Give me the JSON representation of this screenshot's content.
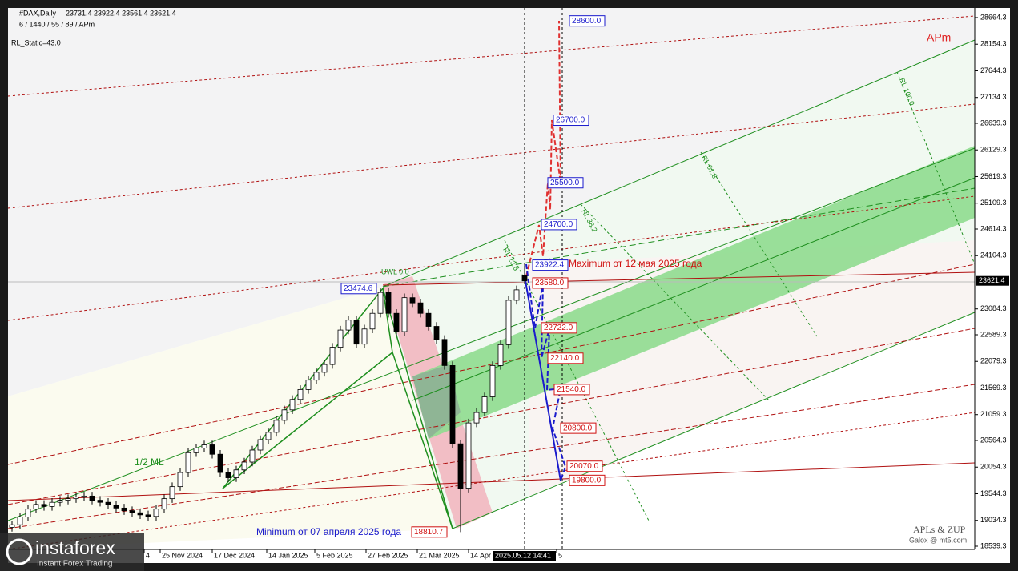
{
  "chart_data": {
    "type": "candlestick",
    "title": "#DAX,Daily",
    "ohlc_header": "23731.4 23922.4 23561.4 23621.4",
    "subtitle": "6 / 1440 / 55 / 89 / APm",
    "static_label": "RL_Static=43.0",
    "corner_label": "APm",
    "annotations": [
      "Maximum от 12 мая 2025 года",
      "Minimum от 07 апреля 2025 года",
      "1/2 ML",
      "UWL 0.0",
      "RL 23.6",
      "RL 38.2",
      "RL 61.8",
      "RL 100.0"
    ],
    "credits": [
      "APLs & ZUP",
      "Galox @ mt5.com"
    ],
    "watermark": [
      "instaforex",
      "Instant Forex Trading"
    ],
    "current_price": 23621.4,
    "cursor_time": "2025.05.12 14:41",
    "open": [
      18900,
      18950,
      19100,
      19250,
      19340,
      19300,
      19380,
      19420,
      19450,
      19480,
      19500,
      19420,
      19380,
      19330,
      19270,
      19220,
      19180,
      19140,
      19110,
      19250,
      19450,
      19680,
      19950,
      20330,
      20420,
      20480,
      20300,
      19950,
      19850,
      20000,
      20150,
      20380,
      20580,
      20720,
      20950,
      21150,
      21350,
      21540,
      21720,
      21870,
      22020,
      22350,
      22680,
      22870,
      22410,
      22700,
      23000,
      23400,
      23000,
      22650,
      23300,
      23200,
      23000,
      22750,
      22500,
      22000,
      20500,
      19650,
      20900,
      21100,
      21400,
      22000,
      22400,
      23250,
      23731.4
    ],
    "high": [
      19030,
      19180,
      19330,
      19420,
      19420,
      19460,
      19500,
      19530,
      19560,
      19580,
      19580,
      19500,
      19460,
      19410,
      19350,
      19300,
      19260,
      19220,
      19330,
      19530,
      19760,
      20030,
      20410,
      20500,
      20560,
      20560,
      20380,
      20030,
      20080,
      20230,
      20460,
      20660,
      20800,
      21030,
      21230,
      21430,
      21620,
      21800,
      21950,
      22100,
      22430,
      22760,
      22950,
      22950,
      22780,
      23080,
      23480,
      23480,
      23080,
      23380,
      23380,
      23280,
      23080,
      22830,
      22580,
      22080,
      20580,
      20980,
      21180,
      21480,
      22080,
      22480,
      23330,
      23530,
      23922.4
    ],
    "low": [
      18820,
      18870,
      19020,
      19170,
      19220,
      19220,
      19300,
      19340,
      19370,
      19400,
      19340,
      19300,
      19250,
      19190,
      19140,
      19100,
      19060,
      19030,
      19030,
      19170,
      19370,
      19600,
      19870,
      20250,
      20340,
      20220,
      19870,
      19770,
      19770,
      19920,
      20070,
      20300,
      20500,
      20640,
      20870,
      21070,
      21270,
      21460,
      21640,
      21790,
      21940,
      22270,
      22600,
      22330,
      22330,
      22620,
      22920,
      22920,
      22570,
      22570,
      23120,
      22920,
      22670,
      22420,
      21920,
      20420,
      18810,
      19570,
      20820,
      21020,
      21320,
      21920,
      22320,
      23170,
      23561.4
    ],
    "close": [
      18950,
      19100,
      19250,
      19340,
      19300,
      19380,
      19420,
      19450,
      19480,
      19500,
      19420,
      19380,
      19330,
      19270,
      19220,
      19180,
      19140,
      19110,
      19250,
      19450,
      19680,
      19950,
      20330,
      20420,
      20480,
      20300,
      19950,
      19850,
      20000,
      20150,
      20380,
      20580,
      20720,
      20950,
      21150,
      21350,
      21540,
      21720,
      21870,
      22020,
      22350,
      22680,
      22870,
      22410,
      22700,
      23000,
      23400,
      23000,
      22650,
      23300,
      23200,
      23000,
      22750,
      22500,
      22000,
      20500,
      19650,
      20900,
      21100,
      21400,
      22000,
      22400,
      23250,
      23450,
      23621.4
    ],
    "levels": [
      {
        "value": 28600,
        "label": "28600.0",
        "color": "#1a1acc"
      },
      {
        "value": 26700,
        "label": "26700.0",
        "color": "#1a1acc"
      },
      {
        "value": 25500,
        "label": "25500.0",
        "color": "#1a1acc"
      },
      {
        "value": 24700,
        "label": "24700.0",
        "color": "#1a1acc"
      },
      {
        "value": 23922.4,
        "label": "23922.4",
        "color": "#1a1acc"
      },
      {
        "value": 23580,
        "label": "23580.0",
        "color": "#d01010"
      },
      {
        "value": 22722,
        "label": "22722.0",
        "color": "#d01010"
      },
      {
        "value": 22140,
        "label": "22140.0",
        "color": "#d01010"
      },
      {
        "value": 21540,
        "label": "21540.0",
        "color": "#d01010"
      },
      {
        "value": 20800,
        "label": "20800.0",
        "color": "#d01010"
      },
      {
        "value": 20070,
        "label": "20070.0",
        "color": "#d01010"
      },
      {
        "value": 19800,
        "label": "19800.0",
        "color": "#d01010"
      },
      {
        "value": 23474.6,
        "label": "23474.6",
        "color": "#1a1acc"
      },
      {
        "value": 18810.7,
        "label": "18810.7",
        "color": "#d01010"
      }
    ],
    "xlim": [
      -0.5,
      120.2
    ],
    "xticks": [
      {
        "value": 16.5,
        "label": "4"
      },
      {
        "value": 18.5,
        "label": "25 Nov 2024"
      },
      {
        "value": 25,
        "label": "17 Dec 2024"
      },
      {
        "value": 31.8,
        "label": "14 Jan 2025"
      },
      {
        "value": 37.8,
        "label": "5 Feb 2025"
      },
      {
        "value": 44.2,
        "label": "27 Feb 2025"
      },
      {
        "value": 50.6,
        "label": "21 Mar 2025"
      },
      {
        "value": 57,
        "label": "14 Apr"
      },
      {
        "value": 68,
        "label": "5"
      }
    ],
    "ylim": [
      18478,
      28848
    ],
    "yticks": [
      28664.3,
      28154.3,
      27644.3,
      27134.3,
      26639.3,
      26129.3,
      25619.3,
      25109.3,
      24614.3,
      24104.3,
      23084.3,
      22589.3,
      22079.3,
      21569.3,
      21059.3,
      20564.3,
      20054.3,
      19544.3,
      19034.3,
      18539.3
    ],
    "bull_color": "#ffffff",
    "bear_color": "#000000"
  }
}
